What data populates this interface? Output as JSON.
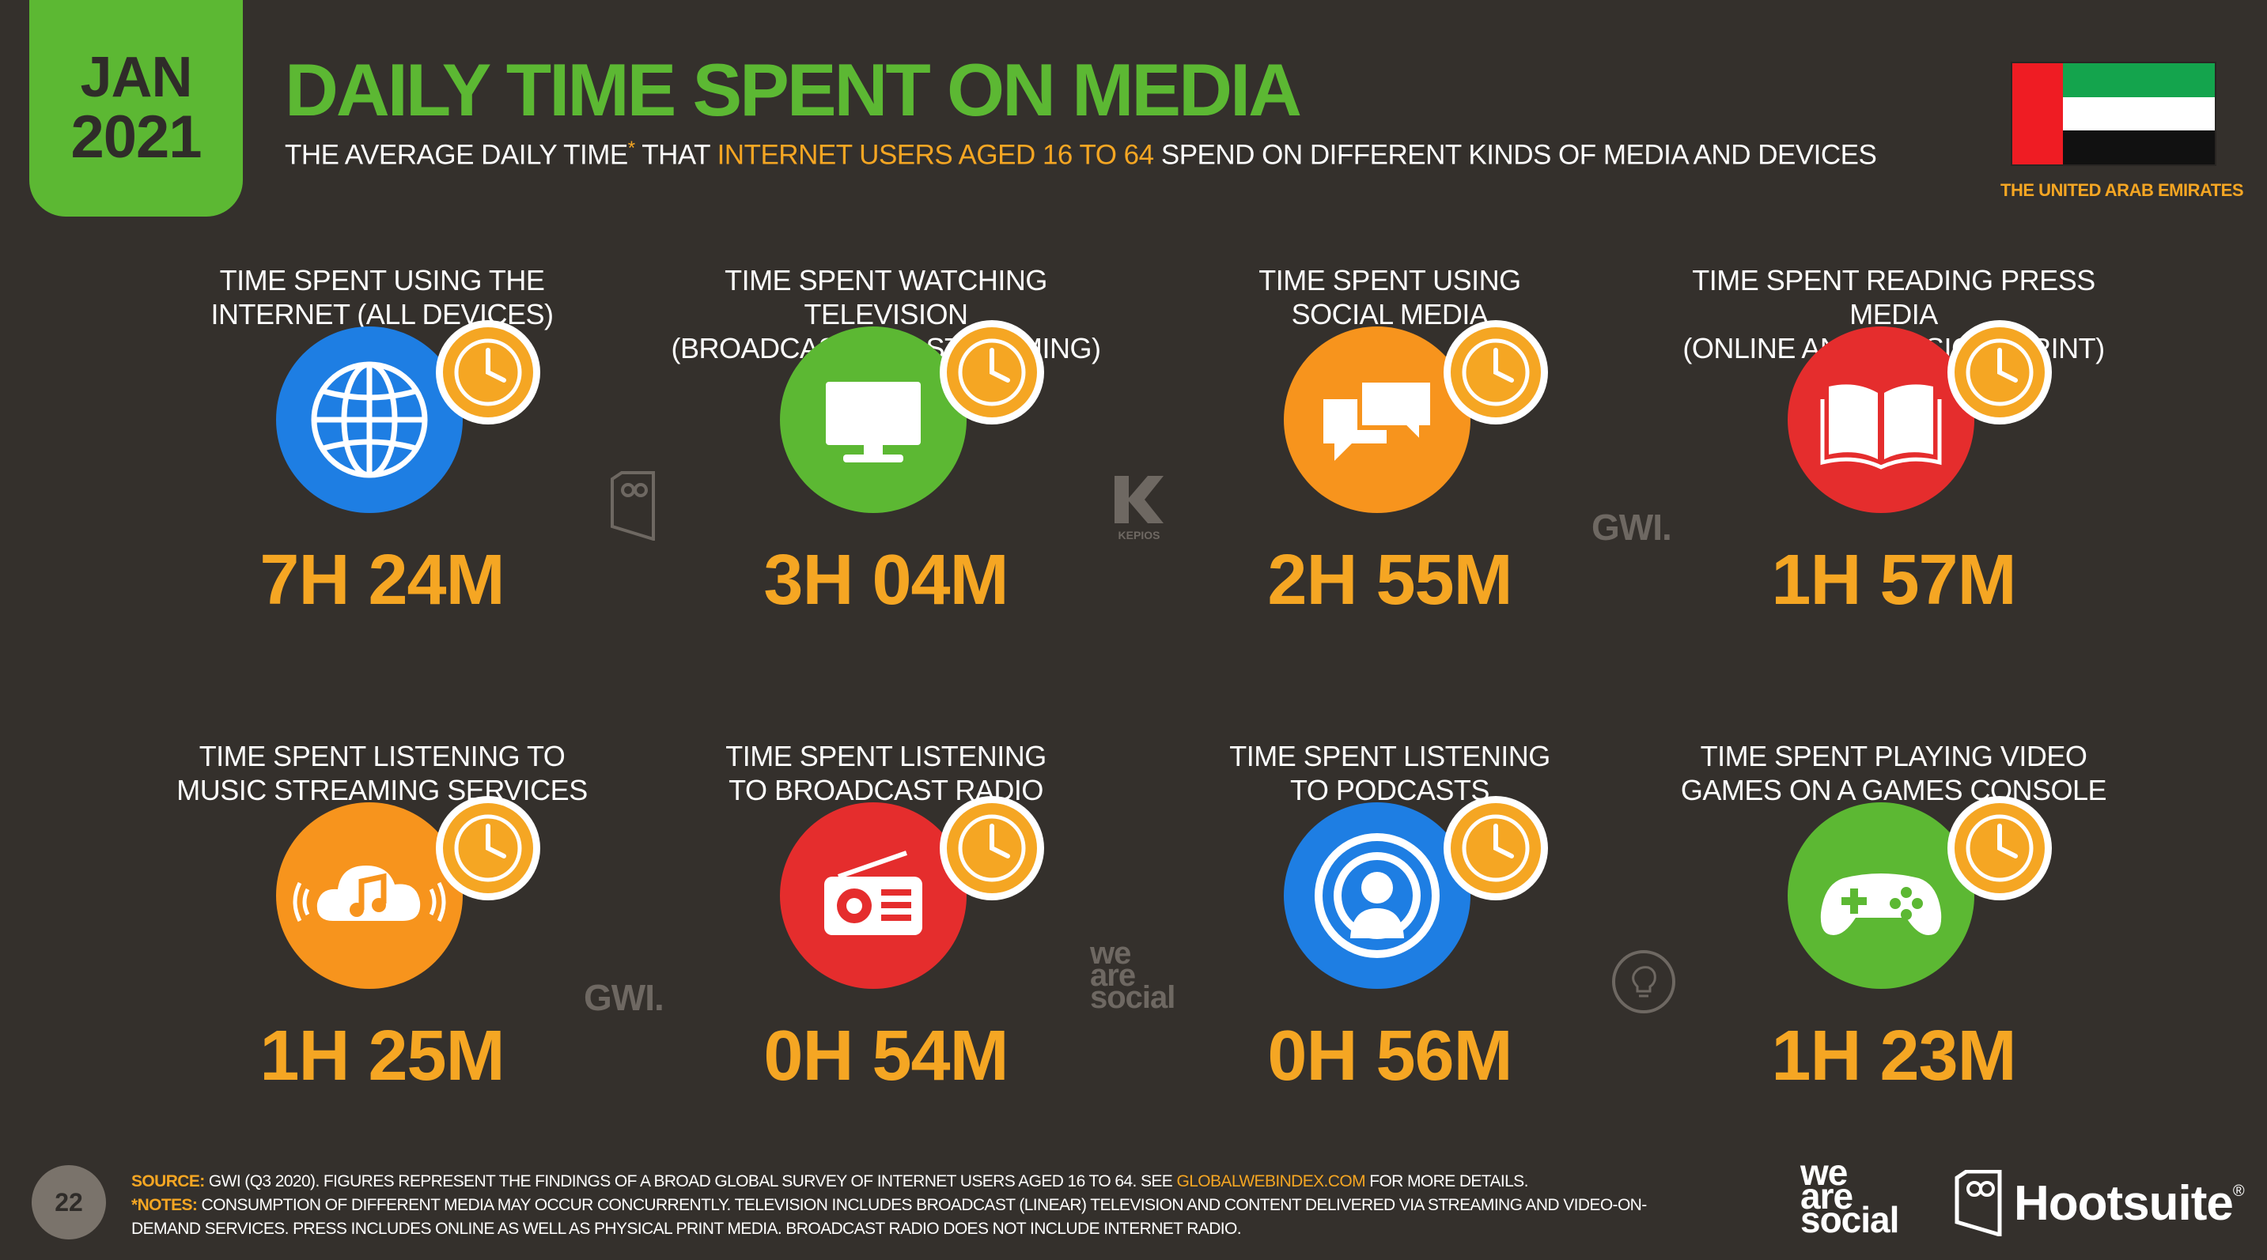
{
  "badge": {
    "month": "JAN",
    "year": "2021"
  },
  "title": "DAILY TIME SPENT ON MEDIA",
  "subtitle": {
    "part1": "THE AVERAGE DAILY TIME",
    "star": "*",
    "part2": " THAT ",
    "highlight": "INTERNET USERS AGED 16 TO 64",
    "part3": " SPEND ON DIFFERENT KINDS OF MEDIA AND DEVICES"
  },
  "country": "THE UNITED ARAB EMIRATES",
  "items": [
    {
      "label1": "TIME SPENT USING THE",
      "label2": "INTERNET (ALL DEVICES)",
      "value": "7H 24M",
      "icon": "globe-icon",
      "color": "#1e7ee3"
    },
    {
      "label1": "TIME SPENT WATCHING TELEVISION",
      "label2": "(BROADCAST AND STREAMING)",
      "value": "3H 04M",
      "icon": "television-icon",
      "color": "#5cb833"
    },
    {
      "label1": "TIME SPENT USING",
      "label2": "SOCIAL MEDIA",
      "value": "2H 55M",
      "icon": "chat-bubbles-icon",
      "color": "#f7941d"
    },
    {
      "label1": "TIME SPENT READING PRESS MEDIA",
      "label2": "(ONLINE AND PHYSICAL PRINT)",
      "value": "1H 57M",
      "icon": "book-icon",
      "color": "#e52d2d"
    },
    {
      "label1": "TIME SPENT LISTENING TO",
      "label2": "MUSIC STREAMING SERVICES",
      "value": "1H 25M",
      "icon": "music-cloud-icon",
      "color": "#f7941d"
    },
    {
      "label1": "TIME SPENT LISTENING",
      "label2": "TO BROADCAST RADIO",
      "value": "0H 54M",
      "icon": "radio-icon",
      "color": "#e52d2d"
    },
    {
      "label1": "TIME SPENT LISTENING",
      "label2": "TO PODCASTS",
      "value": "0H 56M",
      "icon": "podcast-icon",
      "color": "#1e7ee3"
    },
    {
      "label1": "TIME SPENT PLAYING VIDEO",
      "label2": "GAMES ON A GAMES CONSOLE",
      "value": "1H 23M",
      "icon": "gamepad-icon",
      "color": "#5cb833"
    }
  ],
  "watermarks": {
    "kepios": "KEPIOS",
    "gwi": "GWI.",
    "was": [
      "we",
      "are",
      "social"
    ]
  },
  "page_number": "22",
  "source": {
    "label": "SOURCE:",
    "text": " GWI (Q3 2020). FIGURES REPRESENT THE FINDINGS OF A BROAD GLOBAL SURVEY OF INTERNET USERS AGED 16 TO 64. SEE ",
    "link": "GLOBALWEBINDEX.COM",
    "text2": " FOR MORE DETAILS.",
    "notes_label": "*NOTES:",
    "notes": " CONSUMPTION OF DIFFERENT MEDIA MAY OCCUR CONCURRENTLY. TELEVISION INCLUDES BROADCAST (LINEAR) TELEVISION AND CONTENT DELIVERED VIA STREAMING AND VIDEO-ON-DEMAND SERVICES. PRESS INCLUDES ONLINE AS WELL AS PHYSICAL PRINT MEDIA. BROADCAST RADIO DOES NOT INCLUDE INTERNET RADIO."
  },
  "brands": {
    "was": [
      "we",
      "are",
      "social"
    ],
    "hootsuite": "Hootsuite",
    "reg": "®"
  },
  "colors": {
    "green": "#5cb833",
    "orange": "#f5a623",
    "background": "#34302c"
  }
}
